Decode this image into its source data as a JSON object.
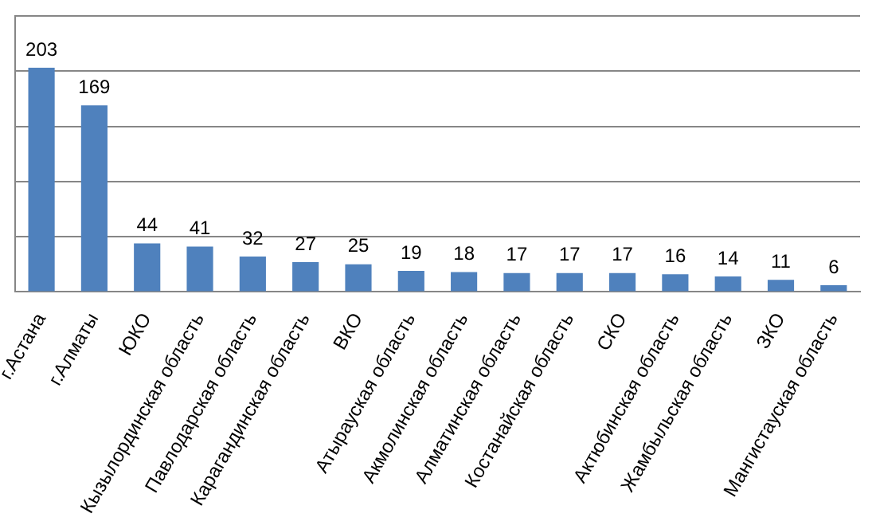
{
  "chart_data": {
    "type": "bar",
    "categories": [
      "г.Астана",
      "г.Алматы",
      "ЮКО",
      "Кызылординская область",
      "Павлодарская область",
      "Карагандинская область",
      "ВКО",
      "Атырауская область",
      "Акмолинская область",
      "Алматинская область",
      "Костанайская область",
      "СКО",
      "Актюбинская область",
      "Жамбыльская область",
      "ЗКО",
      "Мангистауская область"
    ],
    "values": [
      203,
      169,
      44,
      41,
      32,
      27,
      25,
      19,
      18,
      17,
      17,
      17,
      16,
      14,
      11,
      6
    ],
    "color": "#4f81bd",
    "ylim": [
      0,
      250
    ],
    "yticks": [
      {
        "value": 0,
        "label": null
      },
      {
        "value": 50,
        "label": null
      },
      {
        "value": 100,
        "label": null
      },
      {
        "value": 150,
        "label": null
      },
      {
        "value": 200,
        "label": null
      },
      {
        "value": 250,
        "label": null
      }
    ],
    "grid": "y",
    "tick_labels": "x",
    "data_labels": true,
    "legend": false
  }
}
